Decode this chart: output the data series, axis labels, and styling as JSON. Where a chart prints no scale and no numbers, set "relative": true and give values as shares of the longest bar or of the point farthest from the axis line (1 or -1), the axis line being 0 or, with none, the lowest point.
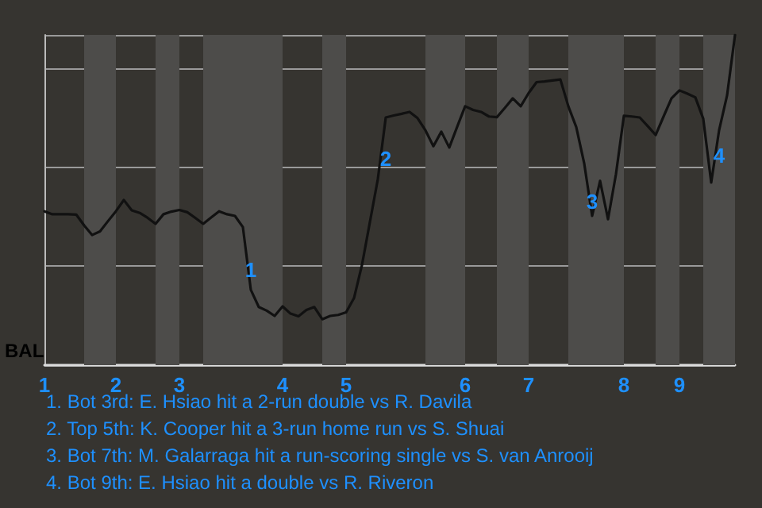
{
  "chart_data": {
    "type": "line",
    "relative": true,
    "ylabel": "BAL",
    "grid": "y",
    "marker": "none",
    "line_style": "solid",
    "categories": [
      "1",
      null,
      null,
      null,
      null,
      null,
      null,
      null,
      null,
      "2",
      null,
      null,
      null,
      null,
      null,
      null,
      null,
      "3",
      null,
      null,
      null,
      null,
      null,
      null,
      null,
      null,
      null,
      null,
      null,
      null,
      "4",
      null,
      null,
      null,
      null,
      null,
      null,
      null,
      "5",
      null,
      null,
      null,
      null,
      null,
      null,
      null,
      null,
      null,
      null,
      null,
      null,
      null,
      null,
      "6",
      null,
      null,
      null,
      null,
      null,
      null,
      null,
      "7",
      null,
      null,
      null,
      null,
      null,
      null,
      null,
      null,
      null,
      null,
      null,
      "8",
      null,
      null,
      null,
      null,
      null,
      null,
      "9",
      null,
      null,
      null,
      null,
      null,
      null,
      null
    ],
    "series": [
      {
        "color": "#111111",
        "values": [
          0.466,
          0.457,
          0.457,
          0.457,
          0.456,
          0.423,
          0.394,
          0.405,
          0.436,
          0.466,
          0.5,
          0.469,
          0.461,
          0.446,
          0.428,
          0.457,
          0.465,
          0.47,
          0.463,
          0.446,
          0.428,
          0.447,
          0.466,
          0.457,
          0.452,
          0.418,
          0.228,
          0.176,
          0.165,
          0.149,
          0.178,
          0.156,
          0.148,
          0.167,
          0.176,
          0.139,
          0.149,
          0.152,
          0.16,
          0.203,
          0.303,
          0.433,
          0.563,
          0.75,
          0.756,
          0.761,
          0.767,
          0.748,
          0.711,
          0.663,
          0.707,
          0.659,
          0.722,
          0.784,
          0.773,
          0.767,
          0.753,
          0.751,
          0.779,
          0.808,
          0.784,
          0.824,
          0.857,
          0.859,
          0.862,
          0.865,
          0.784,
          0.721,
          0.611,
          0.452,
          0.558,
          0.442,
          0.578,
          0.755,
          0.753,
          0.75,
          0.724,
          0.697,
          0.753,
          0.808,
          0.832,
          0.822,
          0.811,
          0.746,
          0.553,
          0.712,
          0.817,
          1.0
        ]
      }
    ],
    "annotations": [
      {
        "text": "1",
        "y": 0.288
      },
      {
        "text": "2",
        "y": 0.625
      },
      {
        "text": "3",
        "y": 0.495
      },
      {
        "text": "4",
        "y": 0.635
      },
      "1. Bot 3rd: E. Hsiao hit a 2-run double vs R. Davila",
      "2. Top 5th: K. Cooper hit a 3-run home run vs S. Shuai",
      "3. Bot 7th: M. Galarraga hit a run-scoring single vs S. van Anrooij",
      "4. Bot 9th: E. Hsiao hit a double vs R. Riveron"
    ]
  }
}
